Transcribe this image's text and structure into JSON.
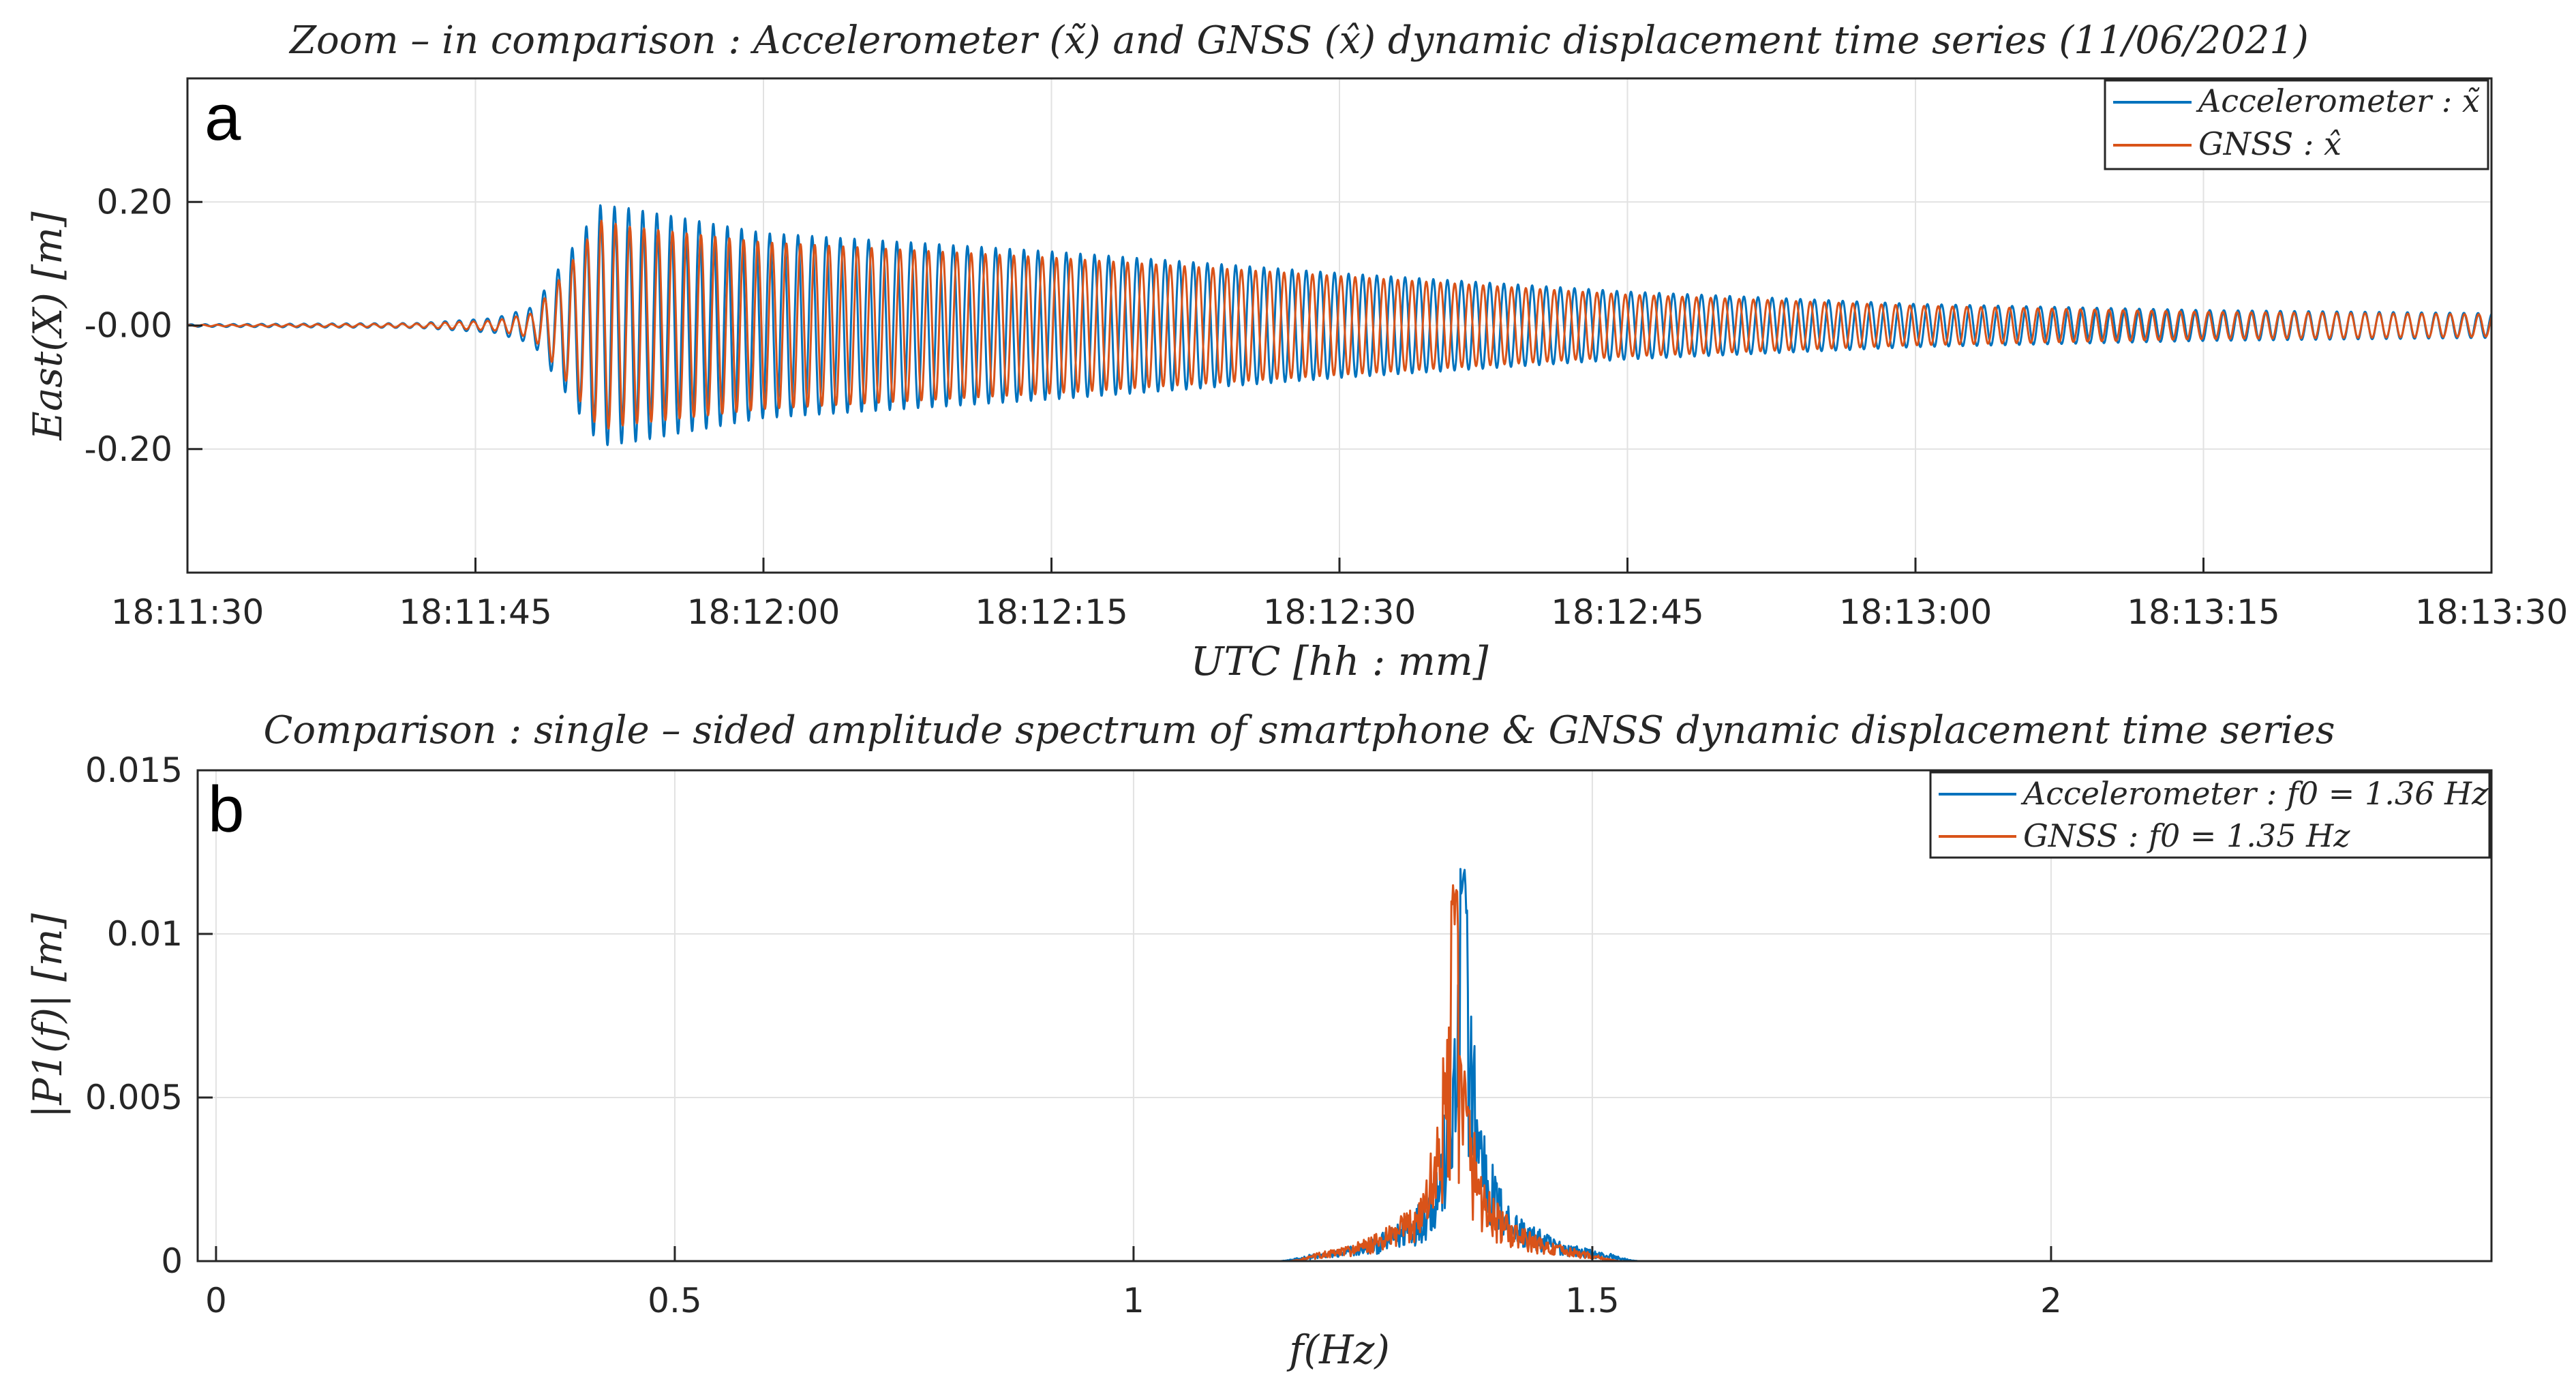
{
  "chart_data": [
    {
      "panel": "a",
      "type": "line",
      "title": "Zoom – in comparison : Accelerometer (x̃) and GNSS (x̂) dynamic displacement time series (11/06/2021)",
      "xlabel": "UTC [hh : mm]",
      "ylabel": "East(X) [m]",
      "x_unit": "seconds from 18:11:30 UTC",
      "xlim": [
        0,
        120
      ],
      "ylim": [
        -0.4,
        0.4
      ],
      "xticks": [
        0,
        15,
        30,
        45,
        60,
        75,
        90,
        105,
        120
      ],
      "xticklabels": [
        "18:11:30",
        "18:11:45",
        "18:12:00",
        "18:12:15",
        "18:12:30",
        "18:12:45",
        "18:13:00",
        "18:13:15",
        "18:13:30"
      ],
      "yticks": [
        -0.2,
        0.0,
        0.2
      ],
      "yticklabels": [
        "-0.20",
        "-0.00",
        "0.20"
      ],
      "grid": true,
      "legend": "top-right",
      "series": [
        {
          "name": "Accelerometer : x̃",
          "color": "#0072BD",
          "frequency_hz": 1.36,
          "envelope": {
            "t": [
              0,
              12,
              16,
              18,
              19.5,
              21.5,
              23,
              30,
              45,
              60,
              75,
              90,
              105,
              120
            ],
            "amp": [
              0.002,
              0.004,
              0.012,
              0.03,
              0.1,
              0.195,
              0.19,
              0.15,
              0.12,
              0.085,
              0.055,
              0.035,
              0.025,
              0.02
            ]
          }
        },
        {
          "name": "GNSS : x̂",
          "color": "#D95319",
          "frequency_hz": 1.35,
          "envelope": {
            "t": [
              0,
              12,
              16,
              18,
              19.5,
              21.5,
              23,
              30,
              45,
              60,
              75,
              90,
              105,
              120
            ],
            "amp": [
              0.001,
              0.003,
              0.008,
              0.02,
              0.08,
              0.17,
              0.16,
              0.135,
              0.11,
              0.08,
              0.05,
              0.032,
              0.022,
              0.018
            ]
          }
        }
      ]
    },
    {
      "panel": "b",
      "type": "line",
      "title": "Comparison : single – sided amplitude spectrum of smartphone & GNSS dynamic displacement time series",
      "xlabel": "f(Hz)",
      "ylabel": "|P1(f)| [m]",
      "xlim": [
        -0.02,
        2.48
      ],
      "ylim": [
        0,
        0.015
      ],
      "xticks": [
        0,
        0.5,
        1,
        1.5,
        2
      ],
      "xticklabels": [
        "0",
        "0.5",
        "1",
        "1.5",
        "2"
      ],
      "yticks": [
        0,
        0.005,
        0.01,
        0.015
      ],
      "yticklabels": [
        "0",
        "0.005",
        "0.01",
        "0.015"
      ],
      "grid": true,
      "legend": "top-right",
      "series": [
        {
          "name": "Accelerometer : f0 = 1.36 Hz",
          "color": "#0072BD",
          "peak_frequency_hz": 1.36,
          "peak_amplitude": 0.0125,
          "band_hz": [
            1.16,
            1.55
          ]
        },
        {
          "name": "GNSS : f0 = 1.35 Hz",
          "color": "#D95319",
          "peak_frequency_hz": 1.35,
          "peak_amplitude": 0.0115,
          "band_hz": [
            1.17,
            1.53
          ]
        }
      ]
    }
  ],
  "panel_labels": [
    "a",
    "b"
  ]
}
